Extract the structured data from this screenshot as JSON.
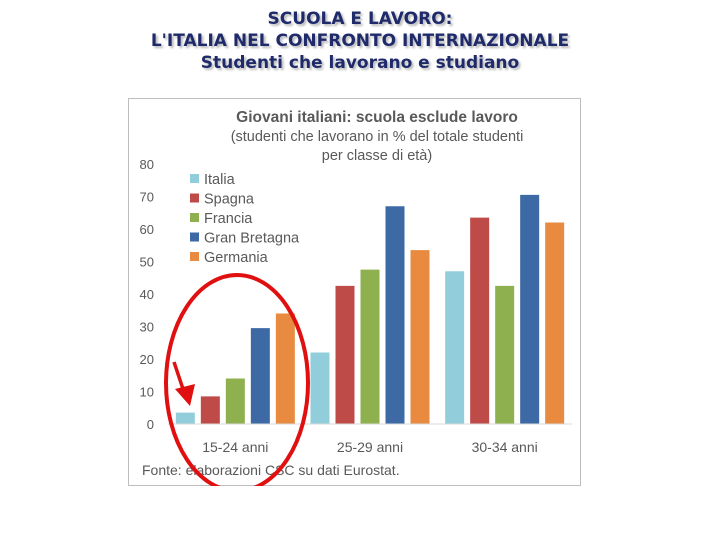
{
  "slide": {
    "title_line1": "SCUOLA E LAVORO:",
    "title_line2": "L'ITALIA NEL CONFRONTO INTERNAZIONALE",
    "title_line3": "Studenti che lavorano e studiano"
  },
  "chart_data": {
    "type": "bar",
    "title": "Giovani italiani: scuola esclude lavoro",
    "subtitle_line1": "(studenti che lavorano in % del totale studenti",
    "subtitle_line2": "per classe di età)",
    "categories": [
      "15-24 anni",
      "25-29 anni",
      "30-34 anni"
    ],
    "series": [
      {
        "name": "Italia",
        "color": "#92cddc",
        "values": [
          3.5,
          22,
          47
        ]
      },
      {
        "name": "Spagna",
        "color": "#be4b48",
        "values": [
          8.5,
          42.5,
          63.5
        ]
      },
      {
        "name": "Francia",
        "color": "#8eb04f",
        "values": [
          14,
          47.5,
          42.5
        ]
      },
      {
        "name": "Gran Bretagna",
        "color": "#3d6aa5",
        "values": [
          29.5,
          67,
          70.5
        ]
      },
      {
        "name": "Germania",
        "color": "#e88a3f",
        "values": [
          34,
          53.5,
          62
        ]
      }
    ],
    "ylim": [
      0,
      80
    ],
    "yticks": [
      "0",
      "10",
      "20",
      "30",
      "40",
      "50",
      "60",
      "70",
      "80"
    ],
    "legend_position": "top-left inside plot",
    "grid": false,
    "footnote": "Fonte: elaborazioni CSC su dati Eurostat.",
    "annotation": {
      "highlight": "15-24 anni",
      "shape": "red ellipse with red arrow",
      "color": "#e01010"
    }
  }
}
